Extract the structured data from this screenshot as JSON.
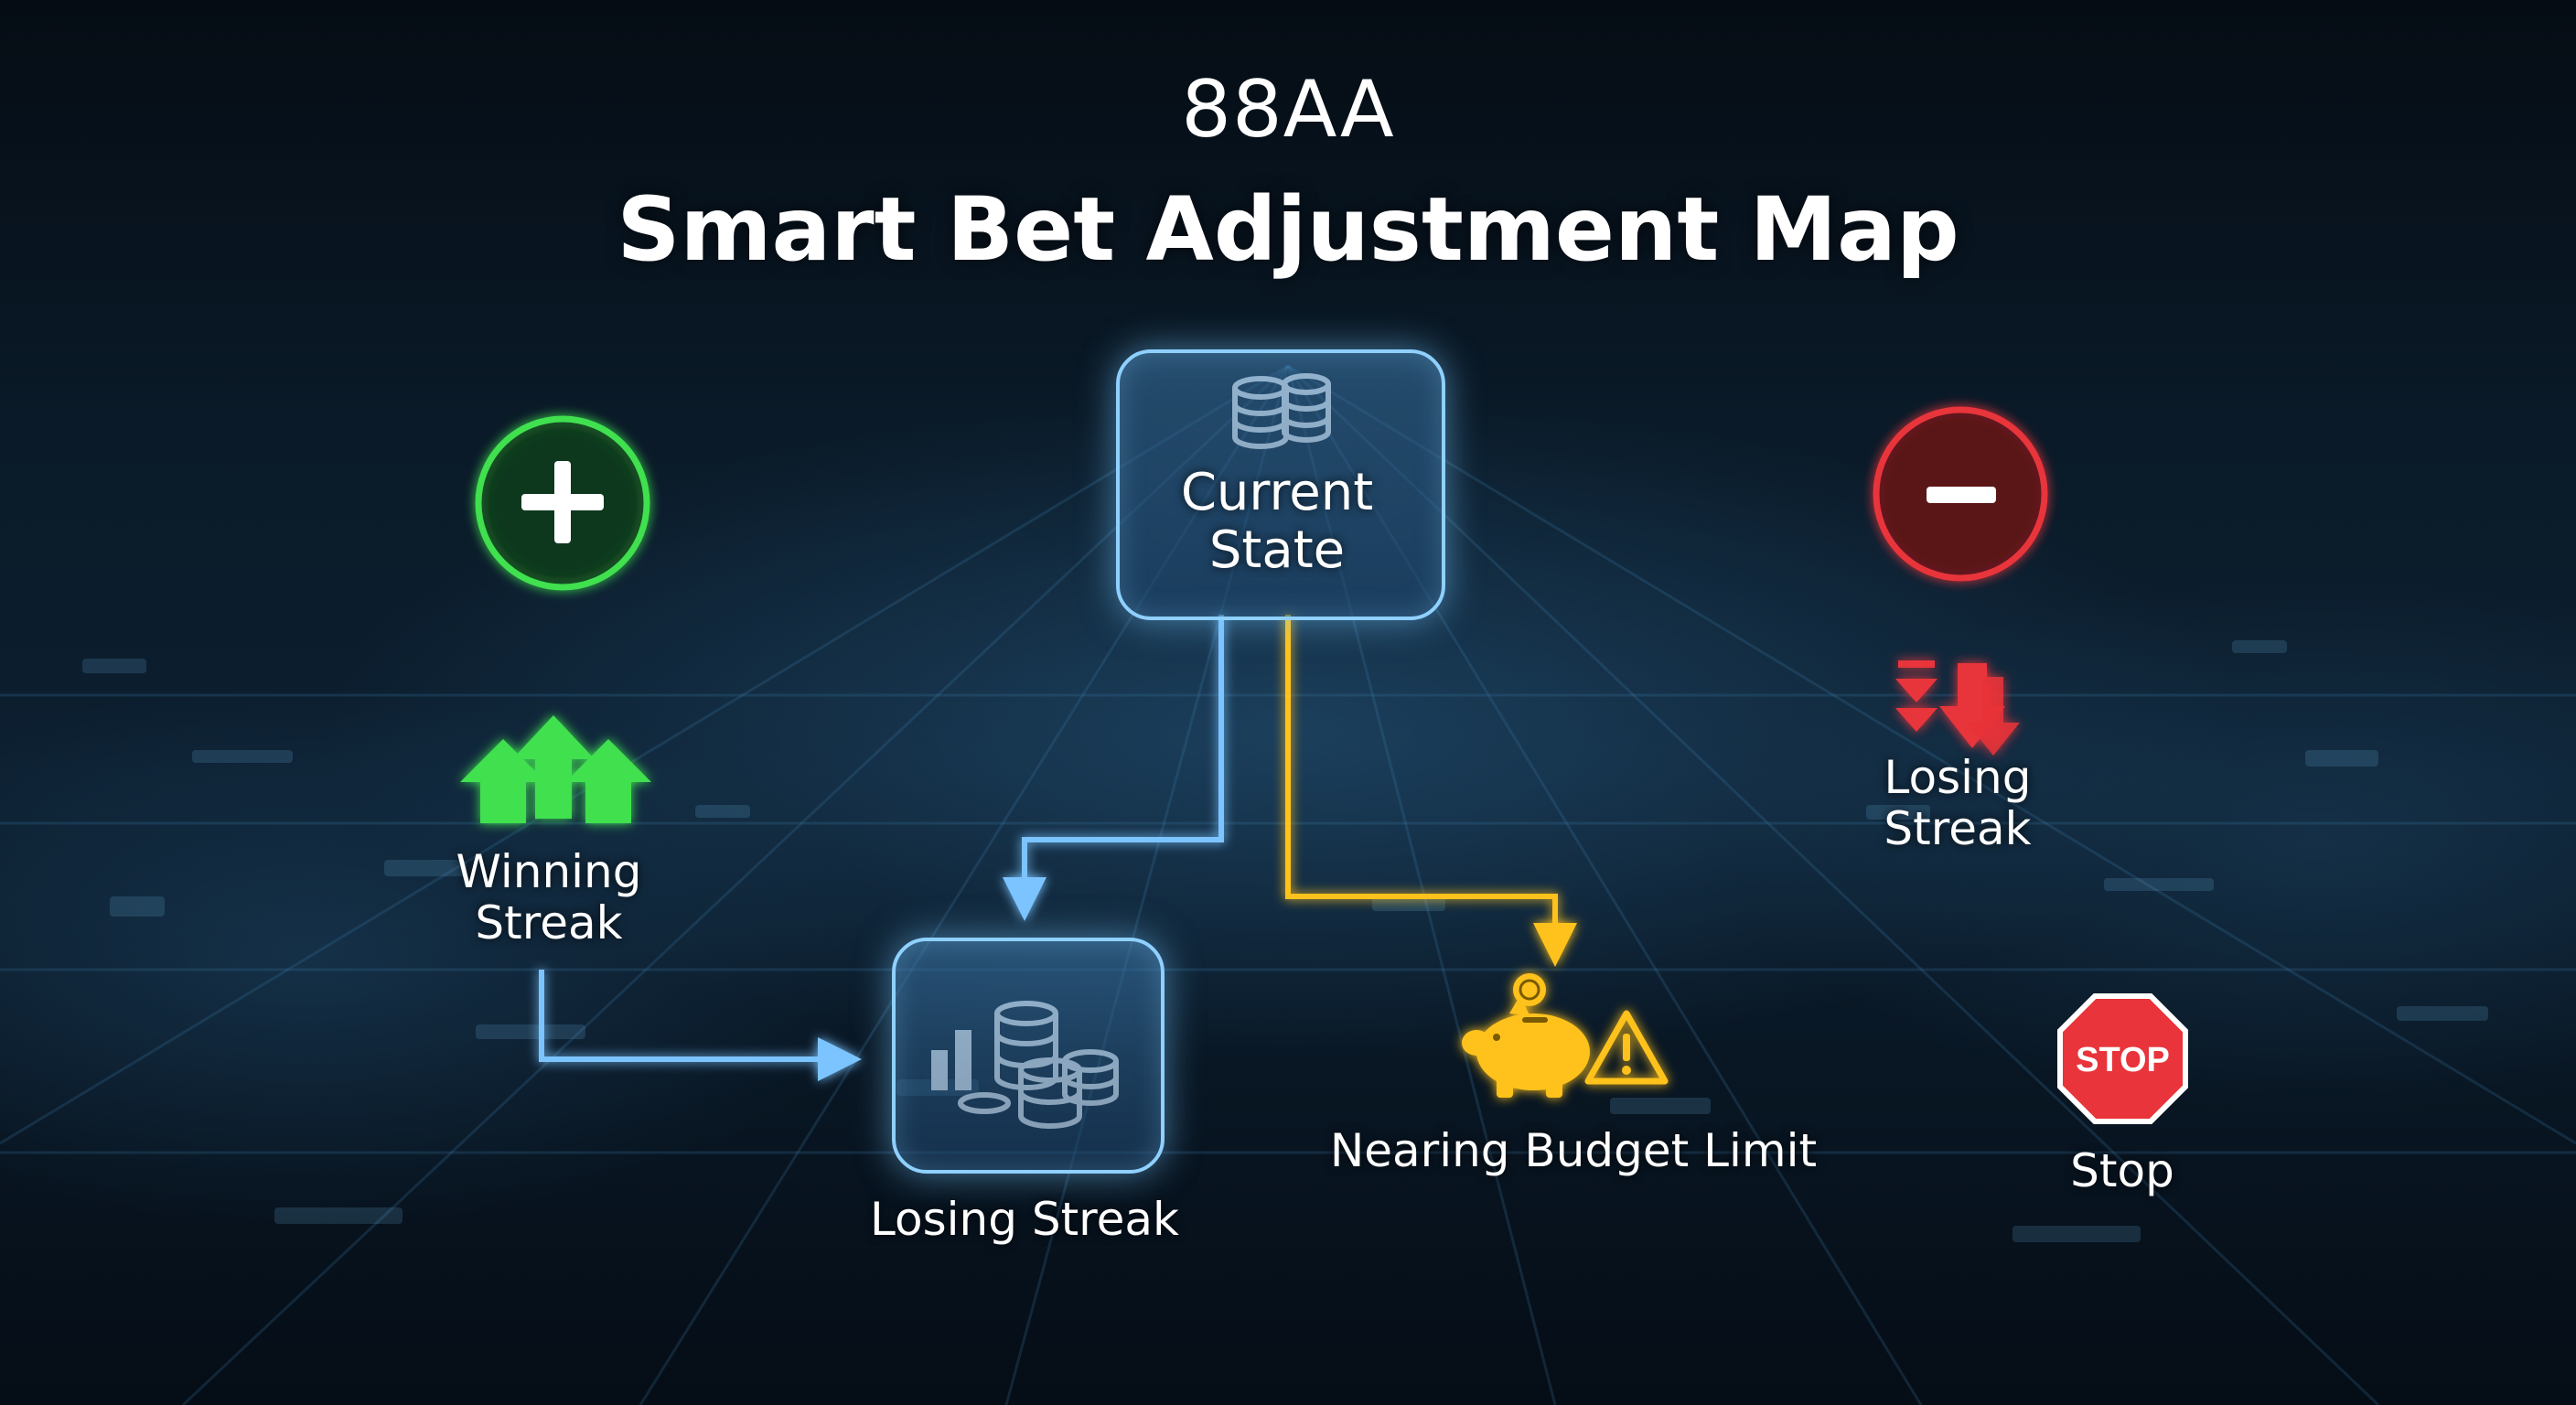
{
  "header": {
    "brand": "88AA",
    "title": "Smart Bet Adjustment Map"
  },
  "nodes": {
    "current_state": {
      "label_line1": "Current",
      "label_line2": "State"
    },
    "increase": {
      "icon": "plus-icon"
    },
    "decrease": {
      "icon": "minus-icon"
    },
    "winning_streak": {
      "label_line1": "Winning",
      "label_line2": "Streak"
    },
    "losing_streak_right": {
      "label_line1": "Losing",
      "label_line2": "Streak"
    },
    "losing_streak_bottom": {
      "label": "Losing Streak"
    },
    "budget_limit": {
      "label": "Nearing Budget Limit"
    },
    "stop": {
      "sign_text": "STOP",
      "label": "Stop"
    }
  },
  "colors": {
    "green": "#3fe04f",
    "red": "#e8343a",
    "blue": "#7cc4ff",
    "yellow": "#ffc21a"
  }
}
